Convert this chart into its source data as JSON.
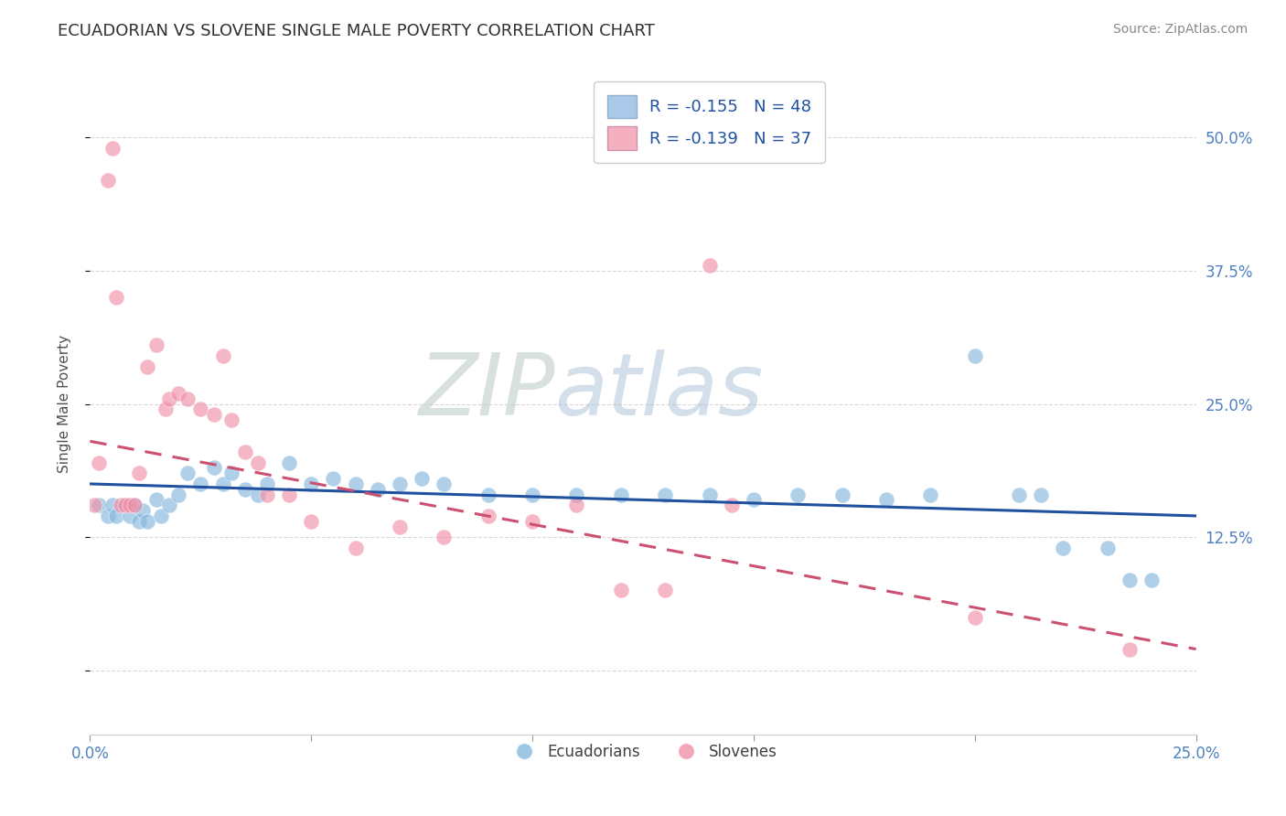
{
  "title": "ECUADORIAN VS SLOVENE SINGLE MALE POVERTY CORRELATION CHART",
  "source": "Source: ZipAtlas.com",
  "ylabel": "Single Male Poverty",
  "ytick_labels": [
    "",
    "12.5%",
    "25.0%",
    "37.5%",
    "50.0%"
  ],
  "ytick_vals": [
    0.0,
    0.125,
    0.25,
    0.375,
    0.5
  ],
  "xmin": 0.0,
  "xmax": 0.25,
  "ymin": -0.06,
  "ymax": 0.56,
  "watermark_zip": "ZIP",
  "watermark_atlas": "atlas",
  "legend_entries": [
    {
      "label": "R = -0.155   N = 48",
      "color": "#aac8e8"
    },
    {
      "label": "R = -0.139   N = 37",
      "color": "#f4b0c0"
    }
  ],
  "legend_bottom": [
    "Ecuadorians",
    "Slovenes"
  ],
  "blue_scatter_x": [
    0.002,
    0.004,
    0.005,
    0.006,
    0.008,
    0.009,
    0.01,
    0.011,
    0.012,
    0.013,
    0.015,
    0.016,
    0.018,
    0.02,
    0.022,
    0.025,
    0.028,
    0.03,
    0.032,
    0.035,
    0.038,
    0.04,
    0.045,
    0.05,
    0.055,
    0.06,
    0.065,
    0.07,
    0.075,
    0.08,
    0.09,
    0.1,
    0.11,
    0.12,
    0.13,
    0.14,
    0.15,
    0.16,
    0.17,
    0.18,
    0.19,
    0.2,
    0.21,
    0.215,
    0.22,
    0.23,
    0.235,
    0.24
  ],
  "blue_scatter_y": [
    0.155,
    0.145,
    0.155,
    0.145,
    0.155,
    0.145,
    0.155,
    0.14,
    0.15,
    0.14,
    0.16,
    0.145,
    0.155,
    0.165,
    0.185,
    0.175,
    0.19,
    0.175,
    0.185,
    0.17,
    0.165,
    0.175,
    0.195,
    0.175,
    0.18,
    0.175,
    0.17,
    0.175,
    0.18,
    0.175,
    0.165,
    0.165,
    0.165,
    0.165,
    0.165,
    0.165,
    0.16,
    0.165,
    0.165,
    0.16,
    0.165,
    0.295,
    0.165,
    0.165,
    0.115,
    0.115,
    0.085,
    0.085
  ],
  "pink_scatter_x": [
    0.001,
    0.002,
    0.004,
    0.005,
    0.006,
    0.007,
    0.008,
    0.009,
    0.01,
    0.011,
    0.013,
    0.015,
    0.017,
    0.018,
    0.02,
    0.022,
    0.025,
    0.028,
    0.03,
    0.032,
    0.035,
    0.038,
    0.04,
    0.045,
    0.05,
    0.06,
    0.07,
    0.08,
    0.09,
    0.1,
    0.11,
    0.12,
    0.13,
    0.14,
    0.145,
    0.2,
    0.235
  ],
  "pink_scatter_y": [
    0.155,
    0.195,
    0.46,
    0.49,
    0.35,
    0.155,
    0.155,
    0.155,
    0.155,
    0.185,
    0.285,
    0.305,
    0.245,
    0.255,
    0.26,
    0.255,
    0.245,
    0.24,
    0.295,
    0.235,
    0.205,
    0.195,
    0.165,
    0.165,
    0.14,
    0.115,
    0.135,
    0.125,
    0.145,
    0.14,
    0.155,
    0.075,
    0.075,
    0.38,
    0.155,
    0.05,
    0.02
  ],
  "blue_line_x": [
    0.0,
    0.25
  ],
  "blue_line_y": [
    0.175,
    0.145
  ],
  "pink_line_x": [
    0.0,
    0.25
  ],
  "pink_line_y": [
    0.215,
    0.02
  ],
  "bg_color": "#ffffff",
  "scatter_blue": "#85b8dc",
  "scatter_pink": "#f090a8",
  "line_blue": "#2050a0",
  "line_pink": "#cc5070",
  "grid_color": "#d8d8d8",
  "title_color": "#303030",
  "axis_label_color": "#5080c0",
  "right_label_color": "#5080c0"
}
